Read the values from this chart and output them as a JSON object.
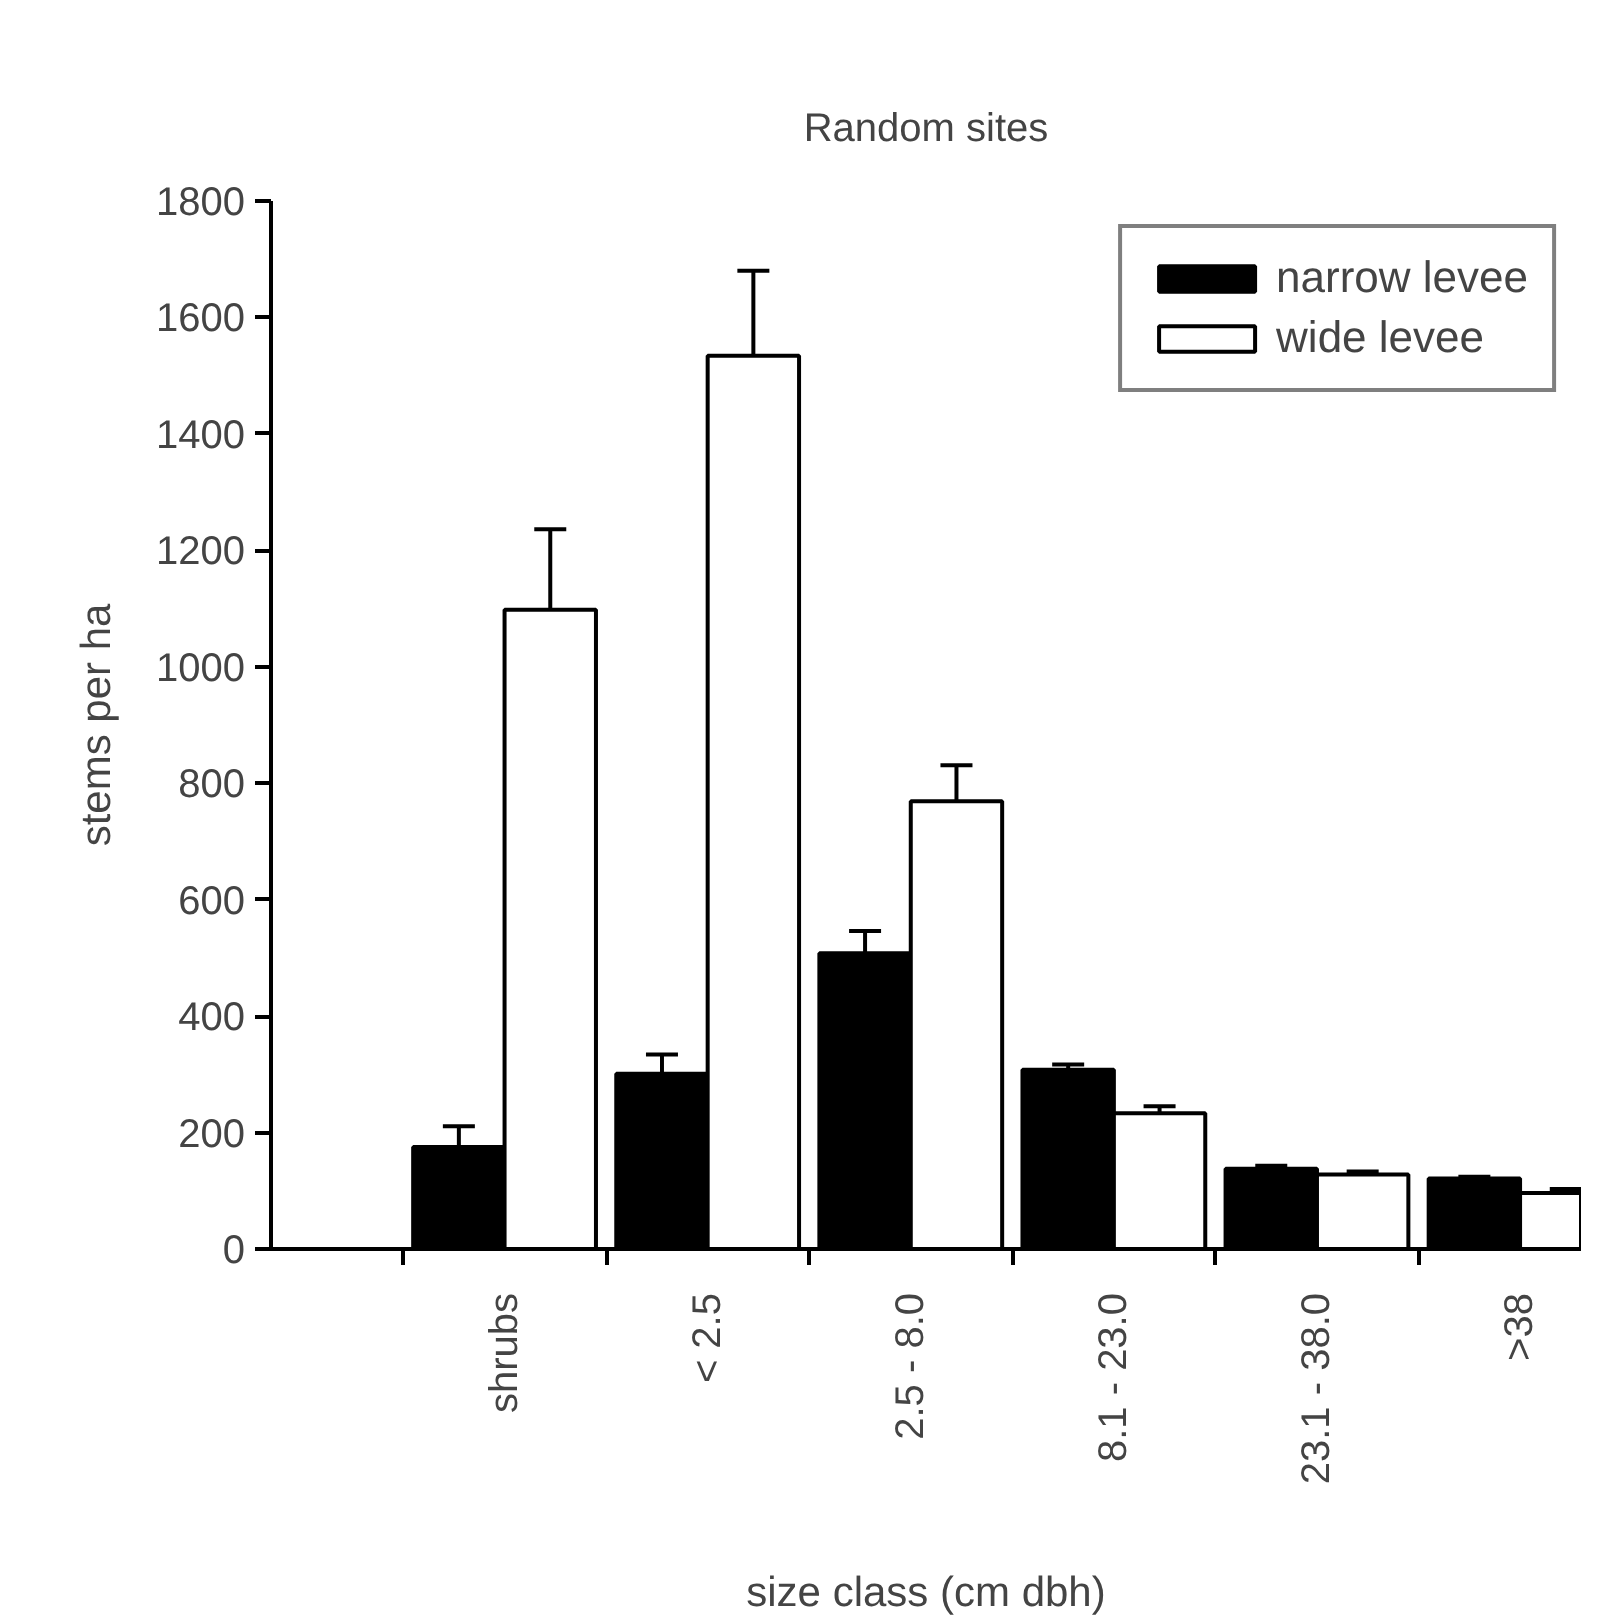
{
  "chart_data": {
    "type": "bar",
    "title": "Random sites",
    "xlabel": "size class (cm dbh)",
    "ylabel": "stems per ha",
    "categories": [
      "shrubs",
      "< 2.5",
      "2.5 - 8.0",
      "8.1 - 23.0",
      "23.1 - 38.0",
      ">38"
    ],
    "series": [
      {
        "name": "narrow levee",
        "color": "#000000",
        "values": [
          175,
          301,
          508,
          308,
          138,
          121
        ],
        "errors": [
          [
            175,
            211
          ],
          [
            301,
            334
          ],
          [
            508,
            546
          ],
          [
            308,
            317
          ],
          [
            138,
            143
          ],
          [
            121,
            124
          ]
        ]
      },
      {
        "name": "wide levee",
        "color": "#ffffff",
        "values": [
          1098,
          1534,
          769,
          233,
          128,
          96
        ],
        "errors": [
          [
            1098,
            1236
          ],
          [
            1534,
            1680
          ],
          [
            769,
            831
          ],
          [
            233,
            245
          ],
          [
            128,
            133
          ],
          [
            96,
            103
          ]
        ]
      }
    ],
    "ylim": [
      0,
      1800
    ],
    "yticks": [
      0,
      200,
      400,
      600,
      800,
      1000,
      1200,
      1400,
      1600,
      1800
    ],
    "grid": false,
    "legend": "top right"
  }
}
